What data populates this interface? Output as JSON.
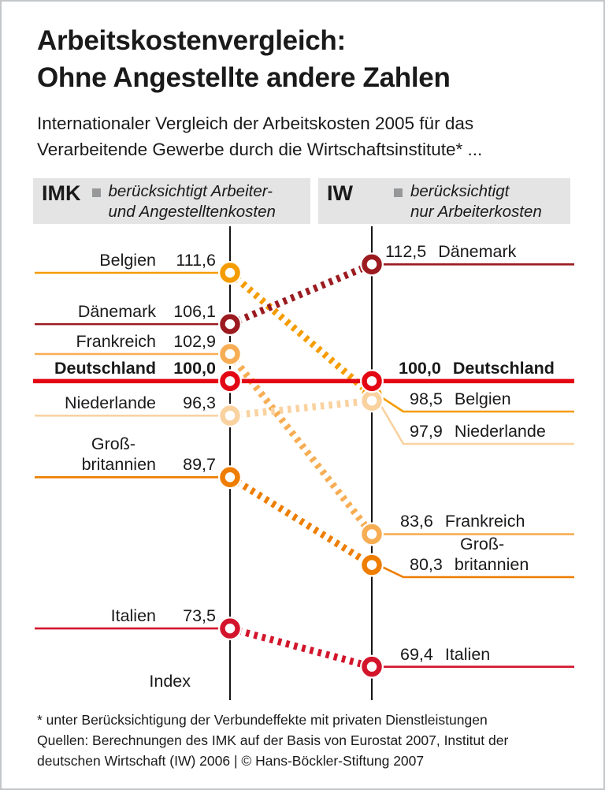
{
  "page": {
    "title_line1": "Arbeitskostenvergleich:",
    "title_line2": "Ohne Angestellte andere Zahlen",
    "subtitle_line1": "Internationaler Vergleich der Arbeitskosten 2005 für das",
    "subtitle_line2": "Verarbeitende Gewerbe durch die Wirtschaftsinstitute* ..."
  },
  "legend": {
    "left_abbr": "IMK",
    "left_desc_line1": "berücksichtigt Arbeiter-",
    "left_desc_line2": "und Angestelltenkosten",
    "right_abbr": "IW",
    "right_desc_line1": "berücksichtigt",
    "right_desc_line2": "nur Arbeiterkosten"
  },
  "axis_label": "Index",
  "footer": {
    "footnote": "* unter Berücksichtigung der Verbundeffekte mit privaten Dienstleistungen",
    "source_line1": "Quellen: Berechnungen des IMK auf der Basis von Eurostat 2007, Institut der",
    "source_line2": "deutschen Wirtschaft (IW) 2006 | © Hans-Böckler-Stiftung 2007"
  },
  "chart_data": {
    "type": "slope",
    "columns": [
      "IMK",
      "IW"
    ],
    "index_base": "Deutschland = 100",
    "series": [
      {
        "name": "Belgien",
        "name_lines": [
          "Belgien"
        ],
        "imk": 111.6,
        "iw": 98.5,
        "imk_label": "111,6",
        "iw_label": "98,5",
        "color": "#F59C00",
        "bold": false
      },
      {
        "name": "Dänemark",
        "name_lines": [
          "Dänemark"
        ],
        "imk": 106.1,
        "iw": 112.5,
        "imk_label": "106,1",
        "iw_label": "112,5",
        "color": "#9B1B20",
        "bold": false
      },
      {
        "name": "Frankreich",
        "name_lines": [
          "Frankreich"
        ],
        "imk": 102.9,
        "iw": 83.6,
        "imk_label": "102,9",
        "iw_label": "83,6",
        "color": "#F7AD53",
        "bold": false
      },
      {
        "name": "Deutschland",
        "name_lines": [
          "Deutschland"
        ],
        "imk": 100.0,
        "iw": 100.0,
        "imk_label": "100,0",
        "iw_label": "100,0",
        "color": "#E30613",
        "bold": true
      },
      {
        "name": "Niederlande",
        "name_lines": [
          "Niederlande"
        ],
        "imk": 96.3,
        "iw": 97.9,
        "imk_label": "96,3",
        "iw_label": "97,9",
        "color": "#F9D2A0",
        "bold": false
      },
      {
        "name": "Großbritannien",
        "name_lines": [
          "Groß-",
          "britannien"
        ],
        "imk": 89.7,
        "iw": 80.3,
        "imk_label": "89,7",
        "iw_label": "80,3",
        "color": "#EE7D00",
        "bold": false
      },
      {
        "name": "Italien",
        "name_lines": [
          "Italien"
        ],
        "imk": 73.5,
        "iw": 69.4,
        "imk_label": "73,5",
        "iw_label": "69,4",
        "color": "#D3152C",
        "bold": false
      }
    ]
  }
}
